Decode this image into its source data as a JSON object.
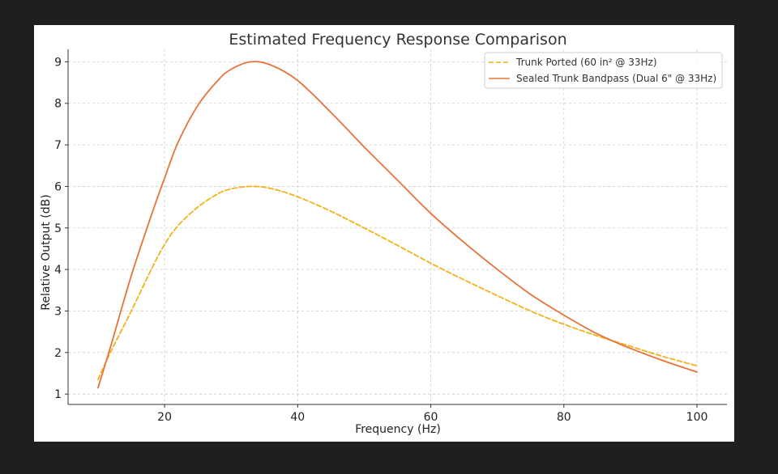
{
  "colors": {
    "page_background": "#1f1f1f",
    "plot_background": "#ffffff",
    "grid": "#cccccc",
    "axis": "#333333"
  },
  "chart_data": {
    "type": "line",
    "title": "Estimated Frequency Response Comparison",
    "xlabel": "Frequency (Hz)",
    "ylabel": "Relative Output (dB)",
    "xlim": [
      5.5,
      104.5
    ],
    "ylim": [
      0.75,
      9.3
    ],
    "xticks": [
      20,
      40,
      60,
      80,
      100
    ],
    "yticks": [
      1,
      2,
      3,
      4,
      5,
      6,
      7,
      8,
      9
    ],
    "grid": true,
    "grid_style": "dashed",
    "legend_position": "top-right",
    "series": [
      {
        "name": "Trunk Ported (60 in² @ 33Hz)",
        "color": "#f2b21b",
        "dash": "dashed",
        "x": [
          10,
          12,
          15,
          18,
          20,
          22,
          25,
          28,
          30,
          33,
          36,
          40,
          45,
          50,
          55,
          60,
          65,
          70,
          75,
          80,
          85,
          90,
          95,
          100
        ],
        "y": [
          1.35,
          2.05,
          3.0,
          4.0,
          4.6,
          5.05,
          5.5,
          5.82,
          5.94,
          6.0,
          5.95,
          5.75,
          5.4,
          5.0,
          4.58,
          4.15,
          3.75,
          3.37,
          3.0,
          2.68,
          2.4,
          2.15,
          1.9,
          1.68
        ]
      },
      {
        "name": "Sealed Trunk Bandpass (Dual 6\" @ 33Hz)",
        "color": "#e8723a",
        "dash": "solid",
        "x": [
          10,
          12,
          15,
          18,
          20,
          22,
          25,
          28,
          30,
          33,
          36,
          40,
          45,
          50,
          55,
          60,
          65,
          70,
          75,
          80,
          85,
          90,
          95,
          100
        ],
        "y": [
          1.15,
          2.2,
          3.85,
          5.3,
          6.2,
          7.05,
          7.95,
          8.55,
          8.82,
          9.0,
          8.92,
          8.55,
          7.78,
          6.95,
          6.15,
          5.35,
          4.65,
          4.0,
          3.4,
          2.9,
          2.45,
          2.1,
          1.8,
          1.53
        ]
      }
    ]
  }
}
